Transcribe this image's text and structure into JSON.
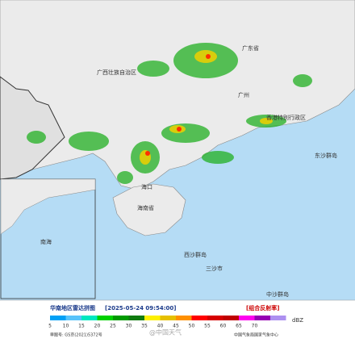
{
  "map": {
    "labels": [
      "广西壮族自治区",
      "广东省",
      "广州",
      "香港特别行政区",
      "东沙群岛",
      "海口",
      "海南省",
      "西沙群岛",
      "三沙市",
      "中沙群岛",
      "南海"
    ]
  },
  "legend": {
    "title": "华南地区雷达拼图",
    "time": "[2025-05-24 09:54:00]",
    "product": "[组合反射率]",
    "unit": "dBZ",
    "scale": [
      {
        "value": 5,
        "color": "#00a0f6"
      },
      {
        "value": 10,
        "color": "#59c3fa"
      },
      {
        "value": 15,
        "color": "#00e8c0"
      },
      {
        "value": 20,
        "color": "#00d100"
      },
      {
        "value": 25,
        "color": "#009a00"
      },
      {
        "value": 30,
        "color": "#107b10"
      },
      {
        "value": 35,
        "color": "#fdf000"
      },
      {
        "value": 40,
        "color": "#e6c000"
      },
      {
        "value": 45,
        "color": "#ff9000"
      },
      {
        "value": 50,
        "color": "#ff0000"
      },
      {
        "value": 55,
        "color": "#d60000"
      },
      {
        "value": 60,
        "color": "#c00000"
      },
      {
        "value": 65,
        "color": "#ff00f0"
      },
      {
        "value": 70,
        "color": "#9600b4"
      },
      {
        "value": null,
        "color": "#ad90f0"
      }
    ]
  },
  "footer": {
    "approval": "审图号: GS京(2021)5372号",
    "source": "中国气象局国家气象中心"
  },
  "watermark": "@中国天气"
}
